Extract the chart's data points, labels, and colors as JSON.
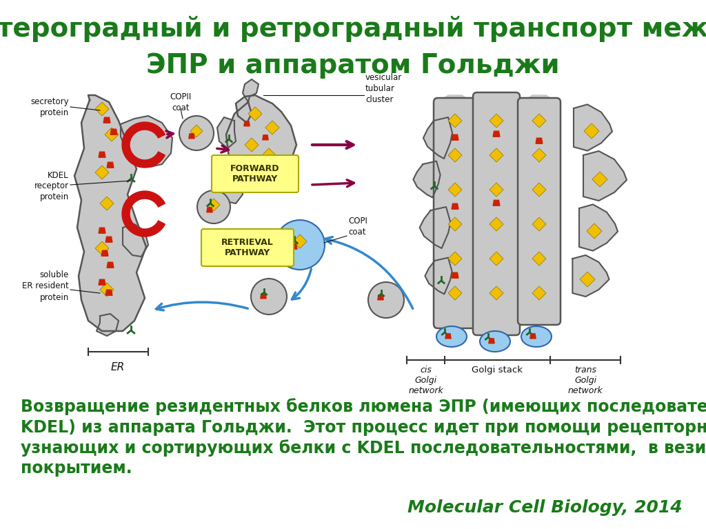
{
  "title_line1": "Антероградный и ретроградный транспорт между",
  "title_line2": "ЭПР и аппаратом Гольджи",
  "body_line1": "Возвращение резидентных белков люмена ЭПР (имеющих последовательность",
  "body_line2": "KDEL) из аппарата Гольджи.  Этот процесс идет при помощи рецепторных белков,",
  "body_line3": "узнающих и сортирующих белки с KDEL последовательностями,  в везикулы с COPI",
  "body_line4": "покрытием.",
  "citation": "Molecular Cell Biology, 2014",
  "title_color": "#1a7a1a",
  "body_color": "#1a7a1a",
  "citation_color": "#1a7a1a",
  "bg_color": "#ffffff",
  "title_fontsize": 28,
  "body_fontsize": 17,
  "citation_fontsize": 18,
  "label_secretory": "secretory\nprotein",
  "label_copii": "COPII\ncoat",
  "label_vesicular": "vesicular\ntubular\ncluster",
  "label_kdel": "KDEL\nreceptor\nprotein",
  "label_forward": "FORWARD\nPATHWAY",
  "label_retrieval": "RETRIEVAL\nPATHWAY",
  "label_copi": "COPI\ncoat",
  "label_soluble": "soluble\nER resident\nprotein",
  "label_er": "ER",
  "label_cis": "cis\nGolgi\nnetwork",
  "label_stack": "Golgi stack",
  "label_trans": "trans\nGolgi\nnetwork"
}
